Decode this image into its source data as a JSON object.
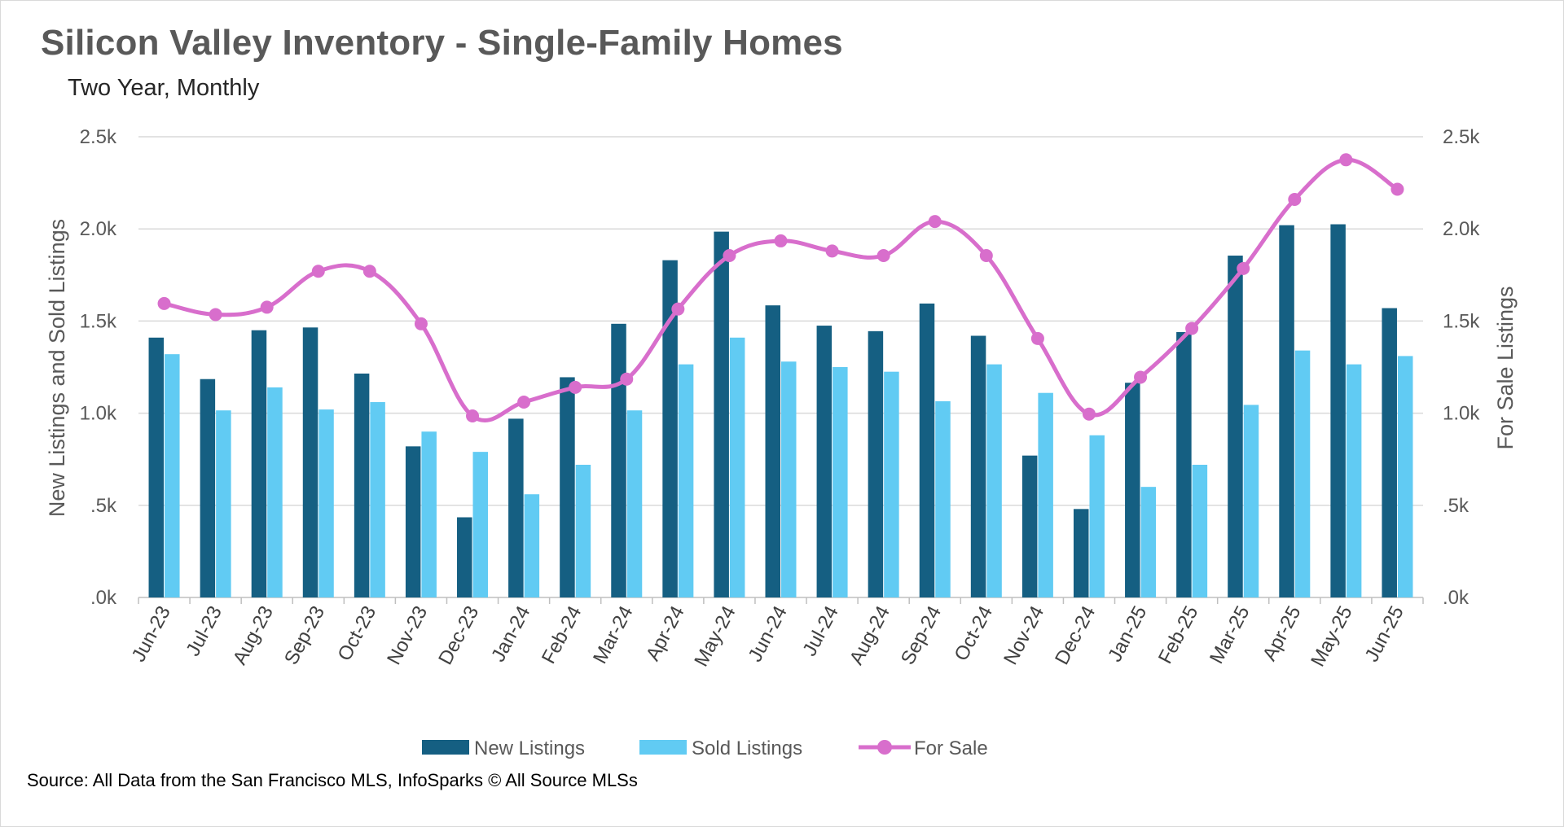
{
  "chart_data": {
    "type": "bar",
    "title": "Silicon Valley Inventory - Single-Family Homes",
    "subtitle": "Two Year, Monthly",
    "source": "Source: All Data from the San Francisco MLS, InfoSparks © All Source MLSs",
    "categories": [
      "Jun-23",
      "Jul-23",
      "Aug-23",
      "Sep-23",
      "Oct-23",
      "Nov-23",
      "Dec-23",
      "Jan-24",
      "Feb-24",
      "Mar-24",
      "Apr-24",
      "May-24",
      "Jun-24",
      "Jul-24",
      "Aug-24",
      "Sep-24",
      "Oct-24",
      "Nov-24",
      "Dec-24",
      "Jan-25",
      "Feb-25",
      "Mar-25",
      "Apr-25",
      "May-25",
      "Jun-25"
    ],
    "y_left": {
      "label": "New Listings and Sold Listings",
      "ylim": [
        0,
        2500
      ],
      "ticks": [
        0,
        500,
        1000,
        1500,
        2000,
        2500
      ],
      "tick_labels": [
        ".0k",
        ".5k",
        "1.0k",
        "1.5k",
        "2.0k",
        "2.5k"
      ]
    },
    "y_right": {
      "label": "For Sale Listings",
      "ylim": [
        0,
        2500
      ],
      "ticks": [
        0,
        500,
        1000,
        1500,
        2000,
        2500
      ],
      "tick_labels": [
        ".0k",
        ".5k",
        "1.0k",
        "1.5k",
        "2.0k",
        "2.5k"
      ]
    },
    "grid": true,
    "legend_position": "bottom",
    "series": [
      {
        "name": "New Listings",
        "type": "bar",
        "axis": "left",
        "color": "#155F82",
        "values": [
          1410,
          1185,
          1450,
          1465,
          1215,
          820,
          435,
          970,
          1195,
          1485,
          1830,
          1985,
          1585,
          1475,
          1445,
          1595,
          1420,
          770,
          480,
          1165,
          1440,
          1855,
          2020,
          2025,
          1570
        ]
      },
      {
        "name": "Sold Listings",
        "type": "bar",
        "axis": "left",
        "color": "#61CBF3",
        "values": [
          1320,
          1015,
          1140,
          1020,
          1060,
          900,
          790,
          560,
          720,
          1015,
          1265,
          1410,
          1280,
          1250,
          1225,
          1065,
          1265,
          1110,
          880,
          600,
          720,
          1045,
          1340,
          1265,
          1310
        ]
      },
      {
        "name": "For Sale",
        "type": "line",
        "axis": "right",
        "color": "#D86ECC",
        "values": [
          1595,
          1535,
          1575,
          1770,
          1770,
          1485,
          985,
          1060,
          1140,
          1185,
          1565,
          1855,
          1935,
          1880,
          1855,
          2040,
          1855,
          1405,
          995,
          1195,
          1460,
          1785,
          2160,
          2375,
          2215
        ]
      }
    ]
  }
}
